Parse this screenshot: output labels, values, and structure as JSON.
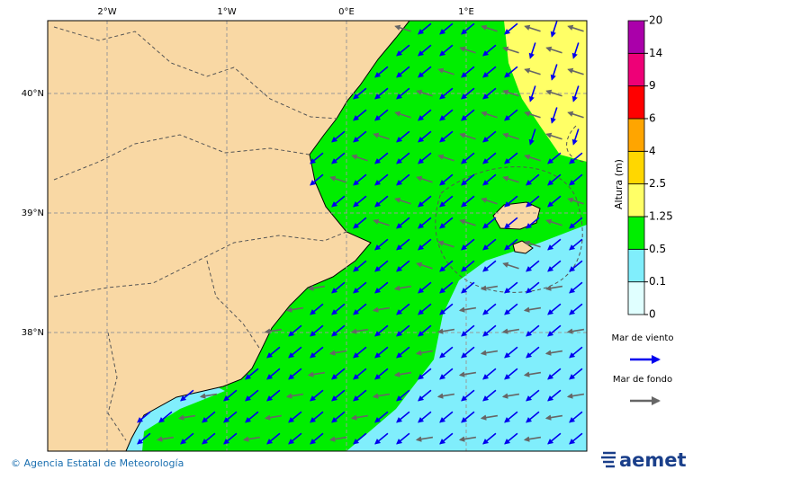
{
  "map": {
    "lon_ticks": [
      {
        "value": -2,
        "label": "2°W"
      },
      {
        "value": -1,
        "label": "1°W"
      },
      {
        "value": 0,
        "label": "0°E"
      },
      {
        "value": 1,
        "label": "1°E"
      }
    ],
    "lat_ticks": [
      {
        "value": 40,
        "label": "40°N"
      },
      {
        "value": 39,
        "label": "39°N"
      },
      {
        "value": 38,
        "label": "38°N"
      }
    ]
  },
  "colorbar": {
    "title": "Altura (m)",
    "levels": [
      0,
      0.1,
      0.5,
      1.25,
      2.5,
      4,
      6,
      9,
      14,
      20
    ],
    "colors": [
      "#e0ffff",
      "#80eefc",
      "#00ee00",
      "#ffff66",
      "#ffd700",
      "#ffa500",
      "#ff0000",
      "#ee0077",
      "#aa00aa"
    ]
  },
  "legend": {
    "items": [
      {
        "label": "Mar de viento",
        "color": "#0000ee"
      },
      {
        "label": "Mar de fondo",
        "color": "#666666"
      }
    ]
  },
  "footer": {
    "credit": "© Agencia Estatal de Meteorología",
    "logo": "aemet"
  }
}
